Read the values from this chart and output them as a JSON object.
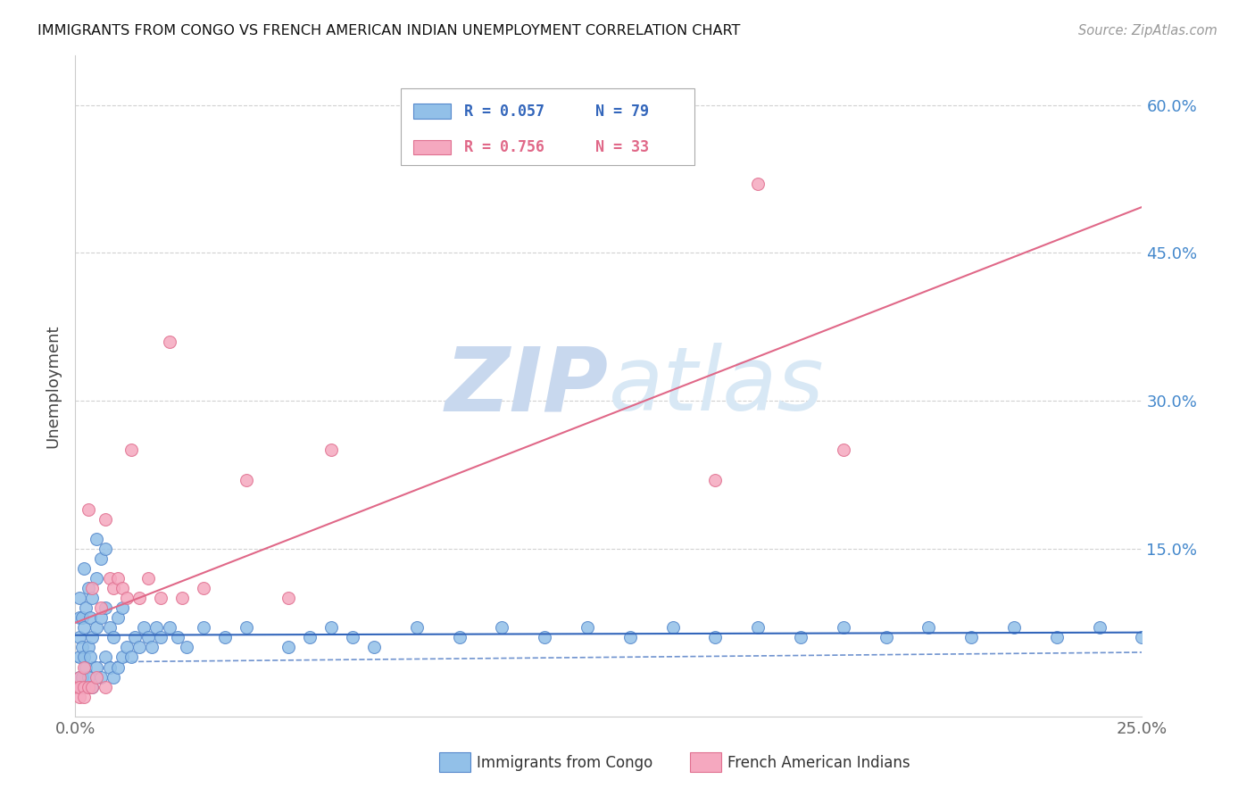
{
  "title": "IMMIGRANTS FROM CONGO VS FRENCH AMERICAN INDIAN UNEMPLOYMENT CORRELATION CHART",
  "source": "Source: ZipAtlas.com",
  "ylabel": "Unemployment",
  "xlim": [
    0.0,
    0.25
  ],
  "ylim": [
    -0.02,
    0.65
  ],
  "xticks": [
    0.0,
    0.05,
    0.1,
    0.15,
    0.2,
    0.25
  ],
  "xtick_labels": [
    "0.0%",
    "",
    "",
    "",
    "",
    "25.0%"
  ],
  "ytick_labels_right": [
    "15.0%",
    "30.0%",
    "45.0%",
    "60.0%"
  ],
  "yticks_right": [
    0.15,
    0.3,
    0.45,
    0.6
  ],
  "blue_R": 0.057,
  "blue_N": 79,
  "pink_R": 0.756,
  "pink_N": 33,
  "legend_label_blue": "Immigrants from Congo",
  "legend_label_pink": "French American Indians",
  "blue_color": "#92c0e8",
  "pink_color": "#f5a8bf",
  "blue_edge_color": "#5588cc",
  "pink_edge_color": "#e07090",
  "blue_trend_color": "#3366bb",
  "pink_trend_color": "#e06888",
  "watermark_zip": "ZIP",
  "watermark_atlas": "atlas",
  "watermark_color": "#c8d8ee",
  "background_color": "#ffffff",
  "blue_scatter_x": [
    0.0005,
    0.001,
    0.001,
    0.001,
    0.001,
    0.001,
    0.0015,
    0.0015,
    0.0015,
    0.002,
    0.002,
    0.002,
    0.002,
    0.0025,
    0.0025,
    0.003,
    0.003,
    0.003,
    0.0035,
    0.0035,
    0.004,
    0.004,
    0.004,
    0.005,
    0.005,
    0.005,
    0.005,
    0.006,
    0.006,
    0.006,
    0.007,
    0.007,
    0.007,
    0.008,
    0.008,
    0.009,
    0.009,
    0.01,
    0.01,
    0.011,
    0.011,
    0.012,
    0.013,
    0.014,
    0.015,
    0.016,
    0.017,
    0.018,
    0.019,
    0.02,
    0.022,
    0.024,
    0.026,
    0.03,
    0.035,
    0.04,
    0.05,
    0.055,
    0.06,
    0.065,
    0.07,
    0.08,
    0.09,
    0.1,
    0.11,
    0.12,
    0.13,
    0.14,
    0.15,
    0.16,
    0.17,
    0.18,
    0.19,
    0.2,
    0.21,
    0.22,
    0.23,
    0.24,
    0.25
  ],
  "blue_scatter_y": [
    0.01,
    0.02,
    0.04,
    0.06,
    0.08,
    0.1,
    0.02,
    0.05,
    0.08,
    0.01,
    0.04,
    0.07,
    0.13,
    0.03,
    0.09,
    0.02,
    0.05,
    0.11,
    0.04,
    0.08,
    0.01,
    0.06,
    0.1,
    0.03,
    0.07,
    0.12,
    0.16,
    0.02,
    0.08,
    0.14,
    0.04,
    0.09,
    0.15,
    0.03,
    0.07,
    0.02,
    0.06,
    0.03,
    0.08,
    0.04,
    0.09,
    0.05,
    0.04,
    0.06,
    0.05,
    0.07,
    0.06,
    0.05,
    0.07,
    0.06,
    0.07,
    0.06,
    0.05,
    0.07,
    0.06,
    0.07,
    0.05,
    0.06,
    0.07,
    0.06,
    0.05,
    0.07,
    0.06,
    0.07,
    0.06,
    0.07,
    0.06,
    0.07,
    0.06,
    0.07,
    0.06,
    0.07,
    0.06,
    0.07,
    0.06,
    0.07,
    0.06,
    0.07,
    0.06
  ],
  "pink_scatter_x": [
    0.0005,
    0.001,
    0.001,
    0.001,
    0.002,
    0.002,
    0.002,
    0.003,
    0.003,
    0.004,
    0.004,
    0.005,
    0.006,
    0.007,
    0.007,
    0.008,
    0.009,
    0.01,
    0.011,
    0.012,
    0.013,
    0.015,
    0.017,
    0.02,
    0.022,
    0.025,
    0.03,
    0.04,
    0.05,
    0.06,
    0.15,
    0.16,
    0.18
  ],
  "pink_scatter_y": [
    0.01,
    0.0,
    0.02,
    0.01,
    0.01,
    0.03,
    0.0,
    0.19,
    0.01,
    0.11,
    0.01,
    0.02,
    0.09,
    0.18,
    0.01,
    0.12,
    0.11,
    0.12,
    0.11,
    0.1,
    0.25,
    0.1,
    0.12,
    0.1,
    0.36,
    0.1,
    0.11,
    0.22,
    0.1,
    0.25,
    0.22,
    0.52,
    0.25
  ],
  "grid_color": "#cccccc",
  "spine_color": "#cccccc"
}
